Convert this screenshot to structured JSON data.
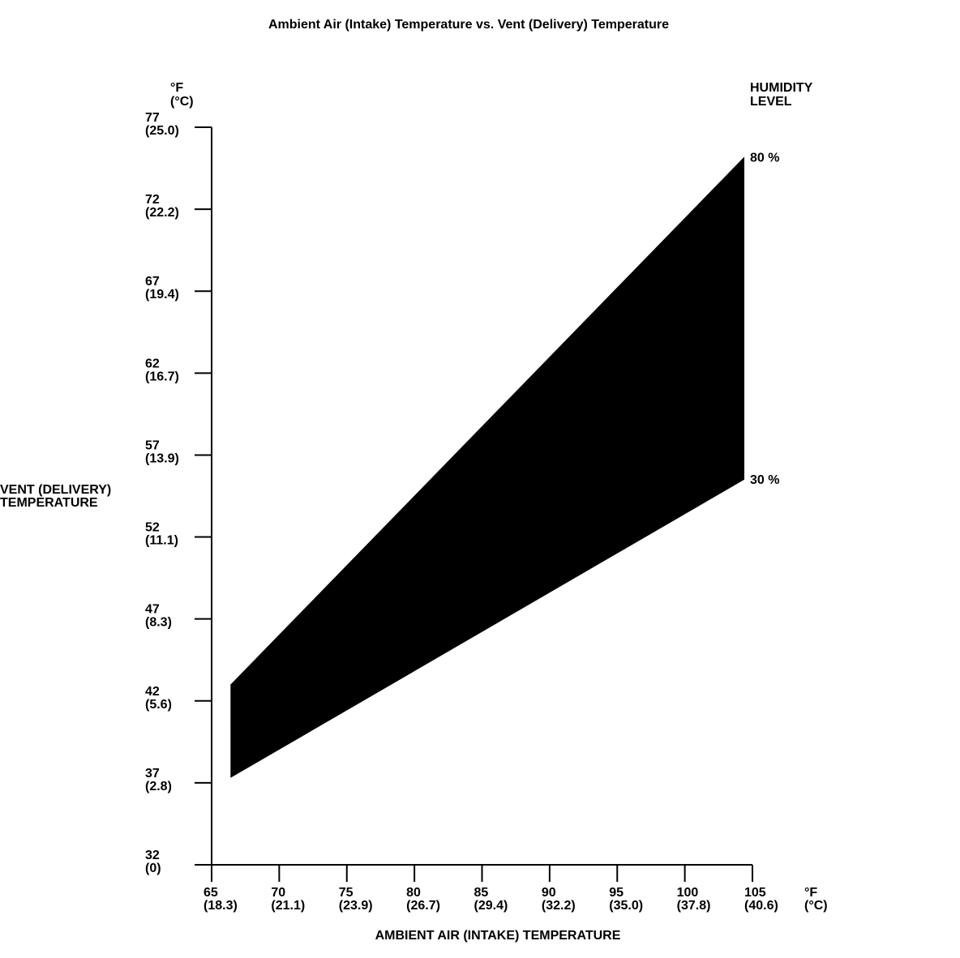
{
  "chart_data": {
    "type": "area",
    "title": "Ambient Air (Intake) Temperature vs. Vent (Delivery) Temperature",
    "xlabel": "AMBIENT AIR (INTAKE) TEMPERATURE",
    "ylabel": [
      "VENT (DELIVERY)",
      "TEMPERATURE"
    ],
    "x_unit": [
      "°F",
      "(°C)"
    ],
    "y_unit": [
      "°F",
      "(°C)"
    ],
    "xlim": [
      65,
      105
    ],
    "ylim": [
      32,
      77
    ],
    "x_ticks": [
      {
        "value": 65,
        "f": "65",
        "c": "(18.3)"
      },
      {
        "value": 70,
        "f": "70",
        "c": "(21.1)"
      },
      {
        "value": 75,
        "f": "75",
        "c": "(23.9)"
      },
      {
        "value": 80,
        "f": "80",
        "c": "(26.7)"
      },
      {
        "value": 85,
        "f": "85",
        "c": "(29.4)"
      },
      {
        "value": 90,
        "f": "90",
        "c": "(32.2)"
      },
      {
        "value": 95,
        "f": "95",
        "c": "(35.0)"
      },
      {
        "value": 100,
        "f": "100",
        "c": "(37.8)"
      },
      {
        "value": 105,
        "f": "105",
        "c": "(40.6)"
      }
    ],
    "y_ticks": [
      {
        "value": 77,
        "f": "77",
        "c": "(25.0)"
      },
      {
        "value": 72,
        "f": "72",
        "c": "(22.2)"
      },
      {
        "value": 67,
        "f": "67",
        "c": "(19.4)"
      },
      {
        "value": 62,
        "f": "62",
        "c": "(16.7)"
      },
      {
        "value": 57,
        "f": "57",
        "c": "(13.9)"
      },
      {
        "value": 52,
        "f": "52",
        "c": "(11.1)"
      },
      {
        "value": 47,
        "f": "47",
        "c": "(8.3)"
      },
      {
        "value": 42,
        "f": "42",
        "c": "(5.6)"
      },
      {
        "value": 37,
        "f": "37",
        "c": "(2.8)"
      },
      {
        "value": 32,
        "f": "32",
        "c": "(0)"
      }
    ],
    "legend_title": [
      "HUMIDITY",
      "LEVEL"
    ],
    "band": {
      "color": "#000000",
      "upper": {
        "label": "80 %",
        "points": [
          [
            66.4,
            43.0
          ],
          [
            104.4,
            75.2
          ]
        ]
      },
      "lower": {
        "label": "30 %",
        "points": [
          [
            66.4,
            37.3
          ],
          [
            104.4,
            55.5
          ]
        ]
      }
    },
    "grid": false
  }
}
